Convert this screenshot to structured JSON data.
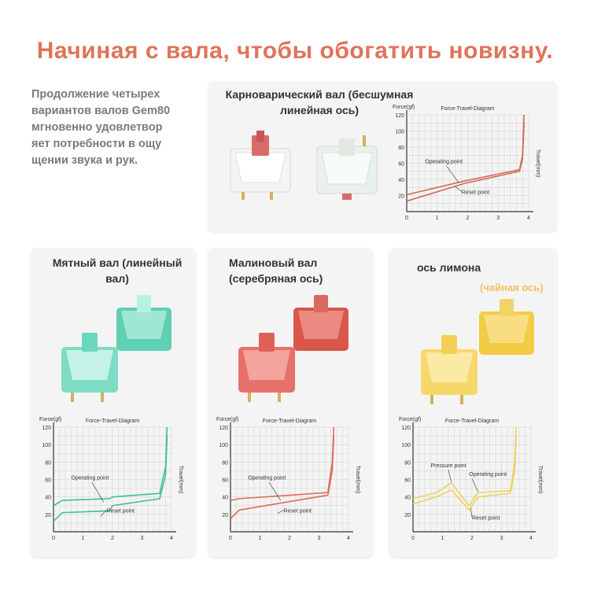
{
  "page": {
    "title": "Начиная с вала, чтобы обогатить новизну.",
    "intro": "Продолжение четырех\nвариантов валов Gem80\n мгновенно удовлетвор\nяет потребности в ощу\nщении звука и рук."
  },
  "cards": {
    "carno": {
      "title": "Карноварический вал (бесшумная\nлинейная ось)"
    },
    "mint": {
      "title": "Мятный вал (линейный\nвал)"
    },
    "raspberry": {
      "title": "Малиновый вал\n(серебряная ось)"
    },
    "lemon": {
      "title": "ось лимона",
      "subtitle": "(чайная ось)"
    }
  },
  "colors": {
    "title": "#e0735a",
    "carno_line": "#d06a58",
    "mint_line": "#3fbf9f",
    "raspberry_line": "#e06a5c",
    "lemon_line": "#f0d060"
  },
  "chart_data": [
    {
      "id": "carno",
      "type": "line",
      "title": "Force-Travel-Diagram",
      "ylabel": "Force(gf)",
      "xlabel": "Travel(mm)",
      "xlim": [
        0,
        4
      ],
      "ylim": [
        0,
        120
      ],
      "xticks": [
        "0",
        "1",
        "2",
        "3",
        "4"
      ],
      "yticks": [
        "20",
        "40",
        "60",
        "80",
        "100",
        "120"
      ],
      "grid": true,
      "annotations": [
        "Operating point",
        "Reset point"
      ],
      "series": [
        {
          "x": [
            0,
            1.9,
            3.7,
            3.8,
            3.85
          ],
          "y": [
            21,
            38,
            52,
            70,
            120
          ]
        },
        {
          "x": [
            0,
            1.9,
            3.7,
            3.8,
            3.85
          ],
          "y": [
            13,
            35,
            50,
            65,
            110
          ]
        }
      ]
    },
    {
      "id": "mint",
      "type": "line",
      "title": "Force-Travel-Diagram",
      "ylabel": "Force(gf)",
      "xlabel": "Travel(mm)",
      "xlim": [
        0,
        4
      ],
      "ylim": [
        0,
        120
      ],
      "xticks": [
        "0",
        "1",
        "2",
        "3",
        "4"
      ],
      "yticks": [
        "20",
        "40",
        "60",
        "80",
        "100",
        "120"
      ],
      "grid": true,
      "annotations": [
        "Operating point",
        "Reset point"
      ],
      "series": [
        {
          "x": [
            0,
            0.3,
            1.9,
            2.0,
            3.6,
            3.8,
            3.85
          ],
          "y": [
            30,
            36,
            38,
            40,
            44,
            75,
            120
          ]
        },
        {
          "x": [
            0,
            0.3,
            1.9,
            2.0,
            3.6,
            3.8,
            3.85
          ],
          "y": [
            12,
            22,
            24,
            30,
            38,
            65,
            110
          ]
        }
      ]
    },
    {
      "id": "raspberry",
      "type": "line",
      "title": "Force-Travel-Diagram",
      "ylabel": "Force(gf)",
      "xlabel": "Travel(mm)",
      "xlim": [
        0,
        4
      ],
      "ylim": [
        0,
        120
      ],
      "xticks": [
        "0",
        "1",
        "2",
        "3",
        "4"
      ],
      "yticks": [
        "20",
        "40",
        "60",
        "80",
        "100",
        "120"
      ],
      "grid": true,
      "annotations": [
        "Operating point",
        "Reset point"
      ],
      "series": [
        {
          "x": [
            0,
            0.3,
            3.3,
            3.45,
            3.5
          ],
          "y": [
            36,
            38,
            45,
            80,
            120
          ]
        },
        {
          "x": [
            0,
            0.3,
            3.3,
            3.45,
            3.5
          ],
          "y": [
            15,
            25,
            42,
            70,
            110
          ]
        }
      ]
    },
    {
      "id": "lemon",
      "type": "line",
      "title": "Force-Travel-Diagram",
      "ylabel": "Force(gf)",
      "xlabel": "Travel(mm)",
      "xlim": [
        0,
        4
      ],
      "ylim": [
        0,
        120
      ],
      "xticks": [
        "0",
        "1",
        "2",
        "3",
        "4"
      ],
      "yticks": [
        "20",
        "40",
        "60",
        "80",
        "100",
        "120"
      ],
      "grid": true,
      "annotations": [
        "Pressure point",
        "Operating point",
        "Reset point"
      ],
      "series": [
        {
          "x": [
            0,
            0.8,
            1.3,
            1.9,
            2.2,
            3.3,
            3.45,
            3.5
          ],
          "y": [
            38,
            45,
            56,
            30,
            45,
            47,
            80,
            120
          ]
        },
        {
          "x": [
            0,
            0.8,
            1.3,
            1.9,
            2.2,
            3.3,
            3.45,
            3.5
          ],
          "y": [
            32,
            40,
            48,
            25,
            40,
            44,
            70,
            110
          ]
        }
      ]
    }
  ]
}
